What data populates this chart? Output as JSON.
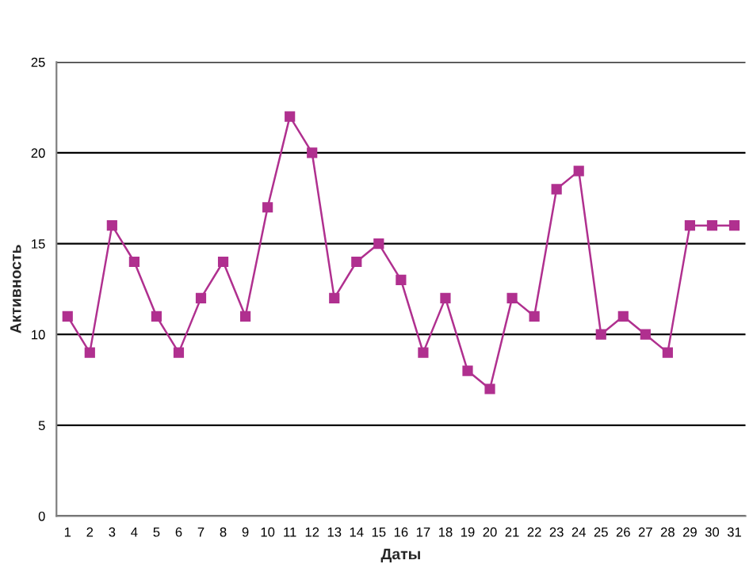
{
  "chart_data": {
    "type": "line",
    "xlabel": "Даты",
    "ylabel": "Активность",
    "categories": [
      "1",
      "2",
      "3",
      "4",
      "5",
      "6",
      "7",
      "8",
      "9",
      "10",
      "11",
      "12",
      "13",
      "14",
      "15",
      "16",
      "17",
      "18",
      "19",
      "20",
      "21",
      "22",
      "23",
      "24",
      "25",
      "26",
      "27",
      "28",
      "29",
      "30",
      "31"
    ],
    "series": [
      {
        "color": "#b0308f",
        "values": [
          11,
          9,
          16,
          14,
          11,
          9,
          12,
          14,
          11,
          17,
          22,
          20,
          12,
          14,
          15,
          13,
          9,
          12,
          8,
          7,
          12,
          11,
          18,
          19,
          10,
          11,
          10,
          9,
          16,
          16,
          16
        ]
      }
    ],
    "ylim": [
      0,
      25
    ],
    "yticks": [
      0,
      5,
      10,
      15,
      20,
      25
    ],
    "grid": "y",
    "marker": "square",
    "line_style": "solid"
  }
}
